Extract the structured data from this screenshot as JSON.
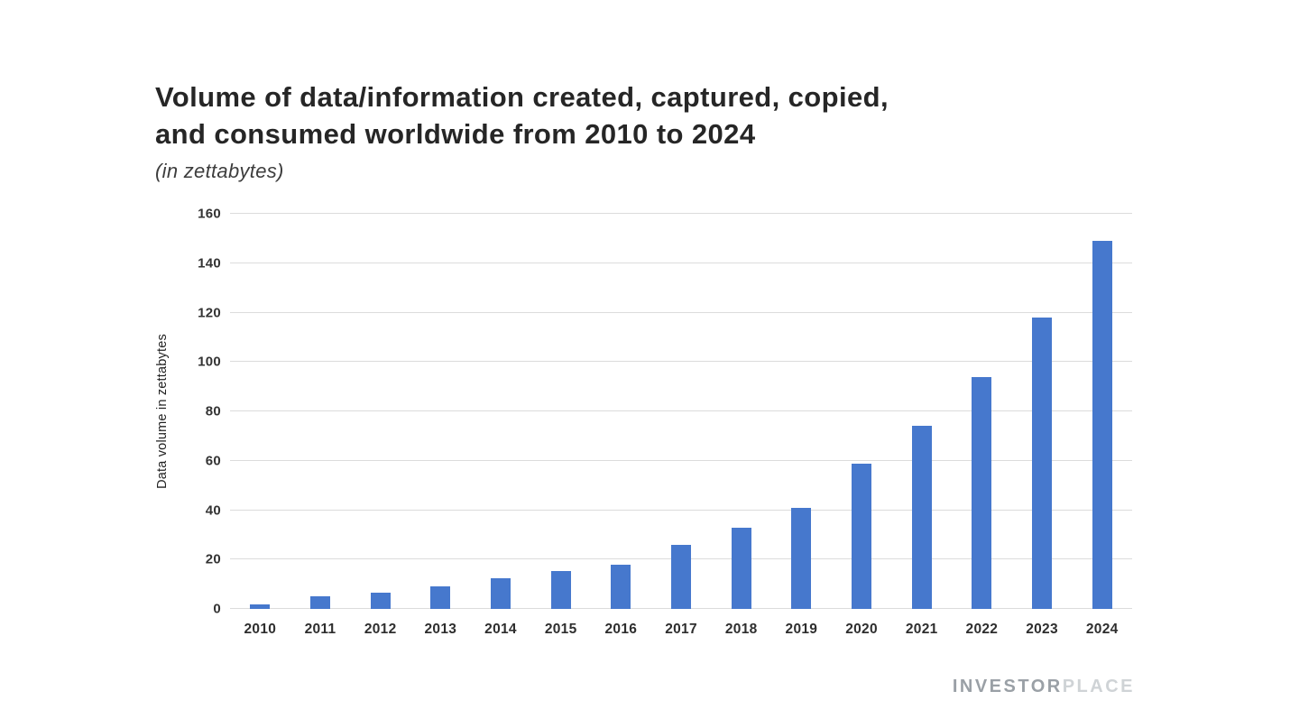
{
  "header": {
    "title_line1": "Volume of data/information created, captured, copied,",
    "title_line2": "and consumed worldwide from 2010 to 2024",
    "subtitle": "(in zettabytes)"
  },
  "watermark": {
    "bold": "INVESTOR",
    "light": "PLACE"
  },
  "chart_data": {
    "type": "bar",
    "title": "Volume of data/information created, captured, copied, and consumed worldwide from 2010 to 2024",
    "subtitle": "(in zettabytes)",
    "categories": [
      "2010",
      "2011",
      "2012",
      "2013",
      "2014",
      "2015",
      "2016",
      "2017",
      "2018",
      "2019",
      "2020",
      "2021",
      "2022",
      "2023",
      "2024"
    ],
    "values": [
      2,
      5,
      6.5,
      9,
      12.5,
      15.5,
      18,
      26,
      33,
      41,
      59,
      74,
      94,
      118,
      149
    ],
    "xlabel": "",
    "ylabel": "Data volume in zettabytes",
    "ylim": [
      0,
      160
    ],
    "ytick_step": 20,
    "grid": true,
    "legend": false,
    "bar_color": "#4678cd",
    "grid_color": "#dcdcdc"
  }
}
